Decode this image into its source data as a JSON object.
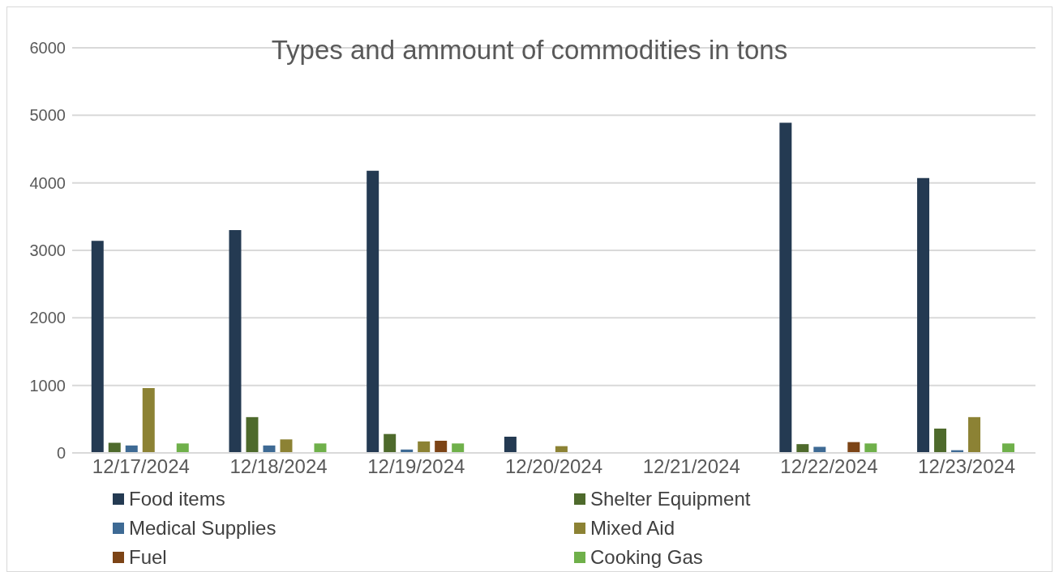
{
  "chart_data": {
    "type": "bar",
    "title": "Types and ammount of commodities in tons",
    "categories": [
      "12/17/2024",
      "12/18/2024",
      "12/19/2024",
      "12/20/2024",
      "12/21/2024",
      "12/22/2024",
      "12/23/2024"
    ],
    "series": [
      {
        "name": "Food items",
        "color": "#243a52",
        "values": [
          3140,
          3300,
          4180,
          240,
          null,
          4890,
          4070
        ]
      },
      {
        "name": "Shelter Equipment",
        "color": "#4e6a2c",
        "values": [
          150,
          530,
          280,
          null,
          null,
          130,
          360
        ]
      },
      {
        "name": "Medical Supplies",
        "color": "#3e6a94",
        "values": [
          110,
          110,
          50,
          null,
          null,
          90,
          40
        ]
      },
      {
        "name": "Mixed Aid",
        "color": "#8c8234",
        "values": [
          960,
          200,
          170,
          100,
          null,
          null,
          530
        ]
      },
      {
        "name": "Fuel",
        "color": "#7c4416",
        "values": [
          null,
          null,
          180,
          null,
          null,
          160,
          null
        ]
      },
      {
        "name": "Cooking Gas",
        "color": "#6fb04a",
        "values": [
          140,
          140,
          140,
          null,
          null,
          140,
          140
        ]
      }
    ],
    "ylim": [
      0,
      6000
    ],
    "yticks": [
      0,
      1000,
      2000,
      3000,
      4000,
      5000,
      6000
    ],
    "grid": "y",
    "legend": "bottom"
  }
}
